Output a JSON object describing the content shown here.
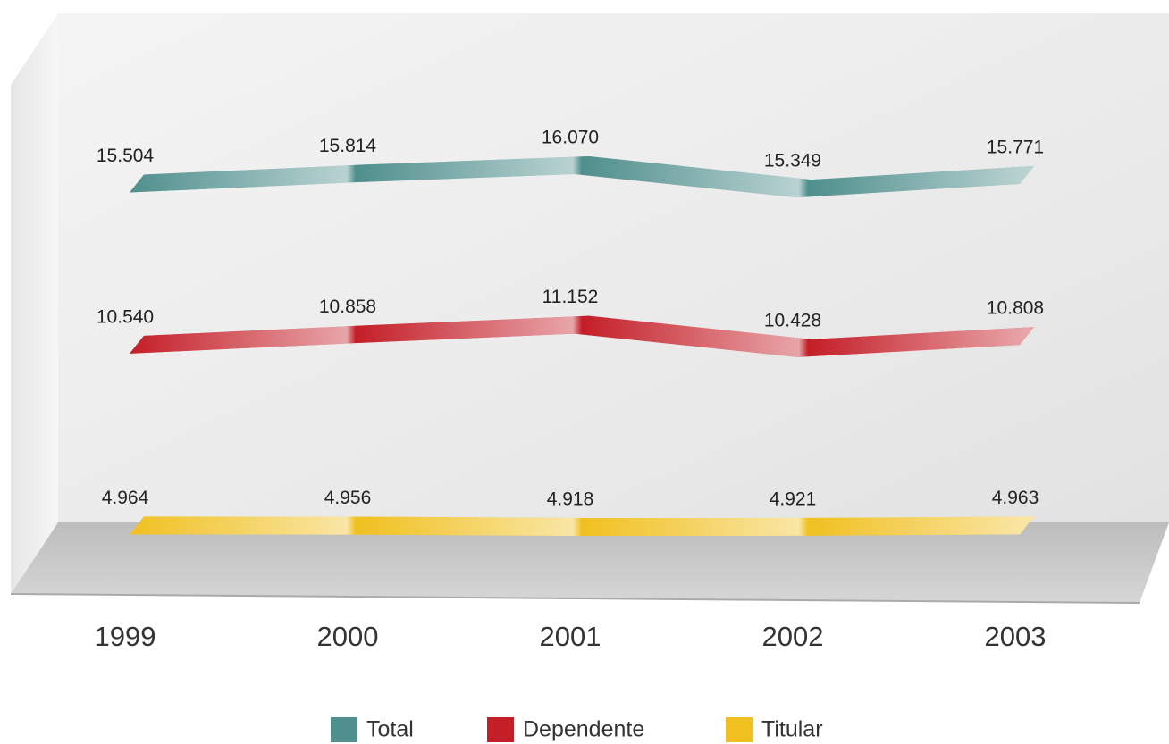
{
  "chart_data": {
    "type": "line",
    "categories": [
      "1999",
      "2000",
      "2001",
      "2002",
      "2003"
    ],
    "series": [
      {
        "name": "Total",
        "color": "#4f8f8d",
        "values": [
          15504,
          15814,
          16070,
          15349,
          15771
        ],
        "value_labels": [
          "15.504",
          "15.814",
          "16.070",
          "15.349",
          "15.771"
        ]
      },
      {
        "name": "Dependente",
        "color": "#c41e27",
        "values": [
          10540,
          10858,
          11152,
          10428,
          10808
        ],
        "value_labels": [
          "10.540",
          "10.858",
          "11.152",
          "10.428",
          "10.808"
        ]
      },
      {
        "name": "Titular",
        "color": "#f0c020",
        "values": [
          4964,
          4956,
          4918,
          4921,
          4963
        ],
        "value_labels": [
          "4.964",
          "4.956",
          "4.918",
          "4.921",
          "4.963"
        ]
      }
    ]
  }
}
